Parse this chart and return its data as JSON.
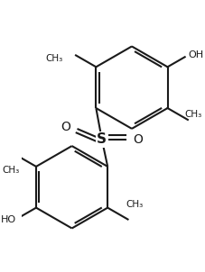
{
  "background": "#ffffff",
  "line_color": "#1a1a1a",
  "line_width": 1.5,
  "dbo": 0.045,
  "figsize": [
    2.27,
    3.02
  ],
  "dpi": 100,
  "xlim": [
    -1.2,
    1.4
  ],
  "ylim": [
    -1.7,
    1.8
  ]
}
